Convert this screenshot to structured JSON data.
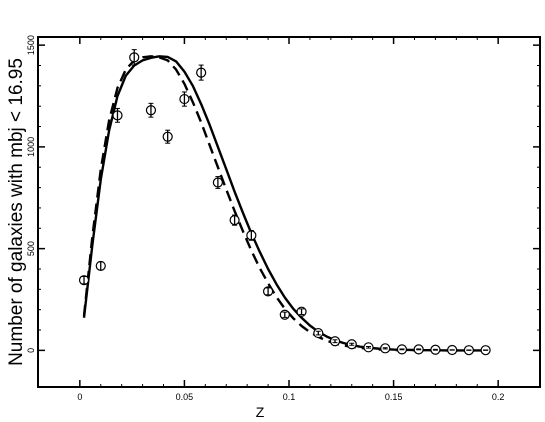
{
  "chart_data": {
    "type": "scatter",
    "title": "",
    "xlabel": "Z",
    "ylabel": "Number of galaxies with mbj < 16.95",
    "xlim": [
      -0.02,
      0.22
    ],
    "ylim": [
      -180,
      1540
    ],
    "grid": false,
    "legend": "none",
    "x_ticks": [
      0,
      0.05,
      0.1,
      0.15,
      0.2
    ],
    "x_tick_labels": [
      "0",
      "0.05",
      "0.1",
      "0.15",
      "0.2"
    ],
    "y_ticks": [
      0,
      500,
      1000,
      1500
    ],
    "y_tick_labels": [
      "0",
      "500",
      "1000",
      "1500"
    ],
    "series": [
      {
        "kind": "points_with_errorbars",
        "marker": "open-circle",
        "x": [
          0.002,
          0.01,
          0.018,
          0.026,
          0.034,
          0.042,
          0.05,
          0.058,
          0.066,
          0.074,
          0.082,
          0.09,
          0.098,
          0.106,
          0.114,
          0.122,
          0.13,
          0.138,
          0.146,
          0.154,
          0.162,
          0.17,
          0.178,
          0.186,
          0.194
        ],
        "y": [
          345,
          415,
          1155,
          1440,
          1180,
          1050,
          1235,
          1365,
          825,
          640,
          565,
          290,
          175,
          190,
          85,
          45,
          30,
          15,
          10,
          5,
          5,
          3,
          2,
          1,
          1
        ],
        "yerr": [
          18,
          20,
          34,
          38,
          34,
          32,
          35,
          37,
          29,
          25,
          24,
          17,
          13,
          14,
          9,
          7,
          5,
          4,
          3,
          2,
          2,
          2,
          1,
          1,
          1
        ]
      },
      {
        "kind": "line",
        "style": "solid",
        "x": [
          0.002,
          0.006,
          0.01,
          0.014,
          0.018,
          0.022,
          0.026,
          0.03,
          0.034,
          0.038,
          0.042,
          0.046,
          0.05,
          0.054,
          0.058,
          0.062,
          0.066,
          0.07,
          0.074,
          0.078,
          0.082,
          0.086,
          0.09,
          0.094,
          0.098,
          0.102,
          0.106,
          0.11,
          0.114,
          0.118,
          0.122,
          0.126,
          0.13,
          0.134,
          0.138,
          0.142,
          0.146,
          0.15,
          0.155,
          0.16,
          0.165,
          0.17,
          0.175,
          0.18,
          0.185,
          0.19,
          0.194
        ],
        "y": [
          160,
          520,
          840,
          1080,
          1250,
          1350,
          1400,
          1425,
          1438,
          1445,
          1442,
          1420,
          1370,
          1300,
          1210,
          1110,
          1000,
          890,
          780,
          675,
          575,
          485,
          400,
          325,
          260,
          205,
          160,
          122,
          92,
          68,
          50,
          36,
          26,
          18,
          13,
          9,
          6,
          4,
          3,
          2,
          1,
          1,
          0,
          0,
          0,
          0,
          0
        ]
      },
      {
        "kind": "line",
        "style": "dashed",
        "x": [
          0.002,
          0.006,
          0.01,
          0.014,
          0.018,
          0.022,
          0.026,
          0.03,
          0.034,
          0.038,
          0.042,
          0.046,
          0.05,
          0.054,
          0.058,
          0.062,
          0.066,
          0.07,
          0.074,
          0.078,
          0.082,
          0.086,
          0.09,
          0.094,
          0.098,
          0.102,
          0.106,
          0.11,
          0.114,
          0.118,
          0.122,
          0.126,
          0.13,
          0.134,
          0.138,
          0.142,
          0.146,
          0.15,
          0.155,
          0.16,
          0.165,
          0.17,
          0.175,
          0.18,
          0.185,
          0.19,
          0.194
        ],
        "y": [
          170,
          560,
          890,
          1130,
          1290,
          1380,
          1425,
          1440,
          1445,
          1440,
          1425,
          1380,
          1310,
          1220,
          1120,
          1010,
          900,
          790,
          685,
          585,
          490,
          405,
          330,
          262,
          205,
          158,
          120,
          90,
          66,
          48,
          34,
          24,
          17,
          12,
          8,
          5,
          4,
          2,
          2,
          1,
          1,
          0,
          0,
          0,
          0,
          0,
          0
        ]
      }
    ]
  }
}
